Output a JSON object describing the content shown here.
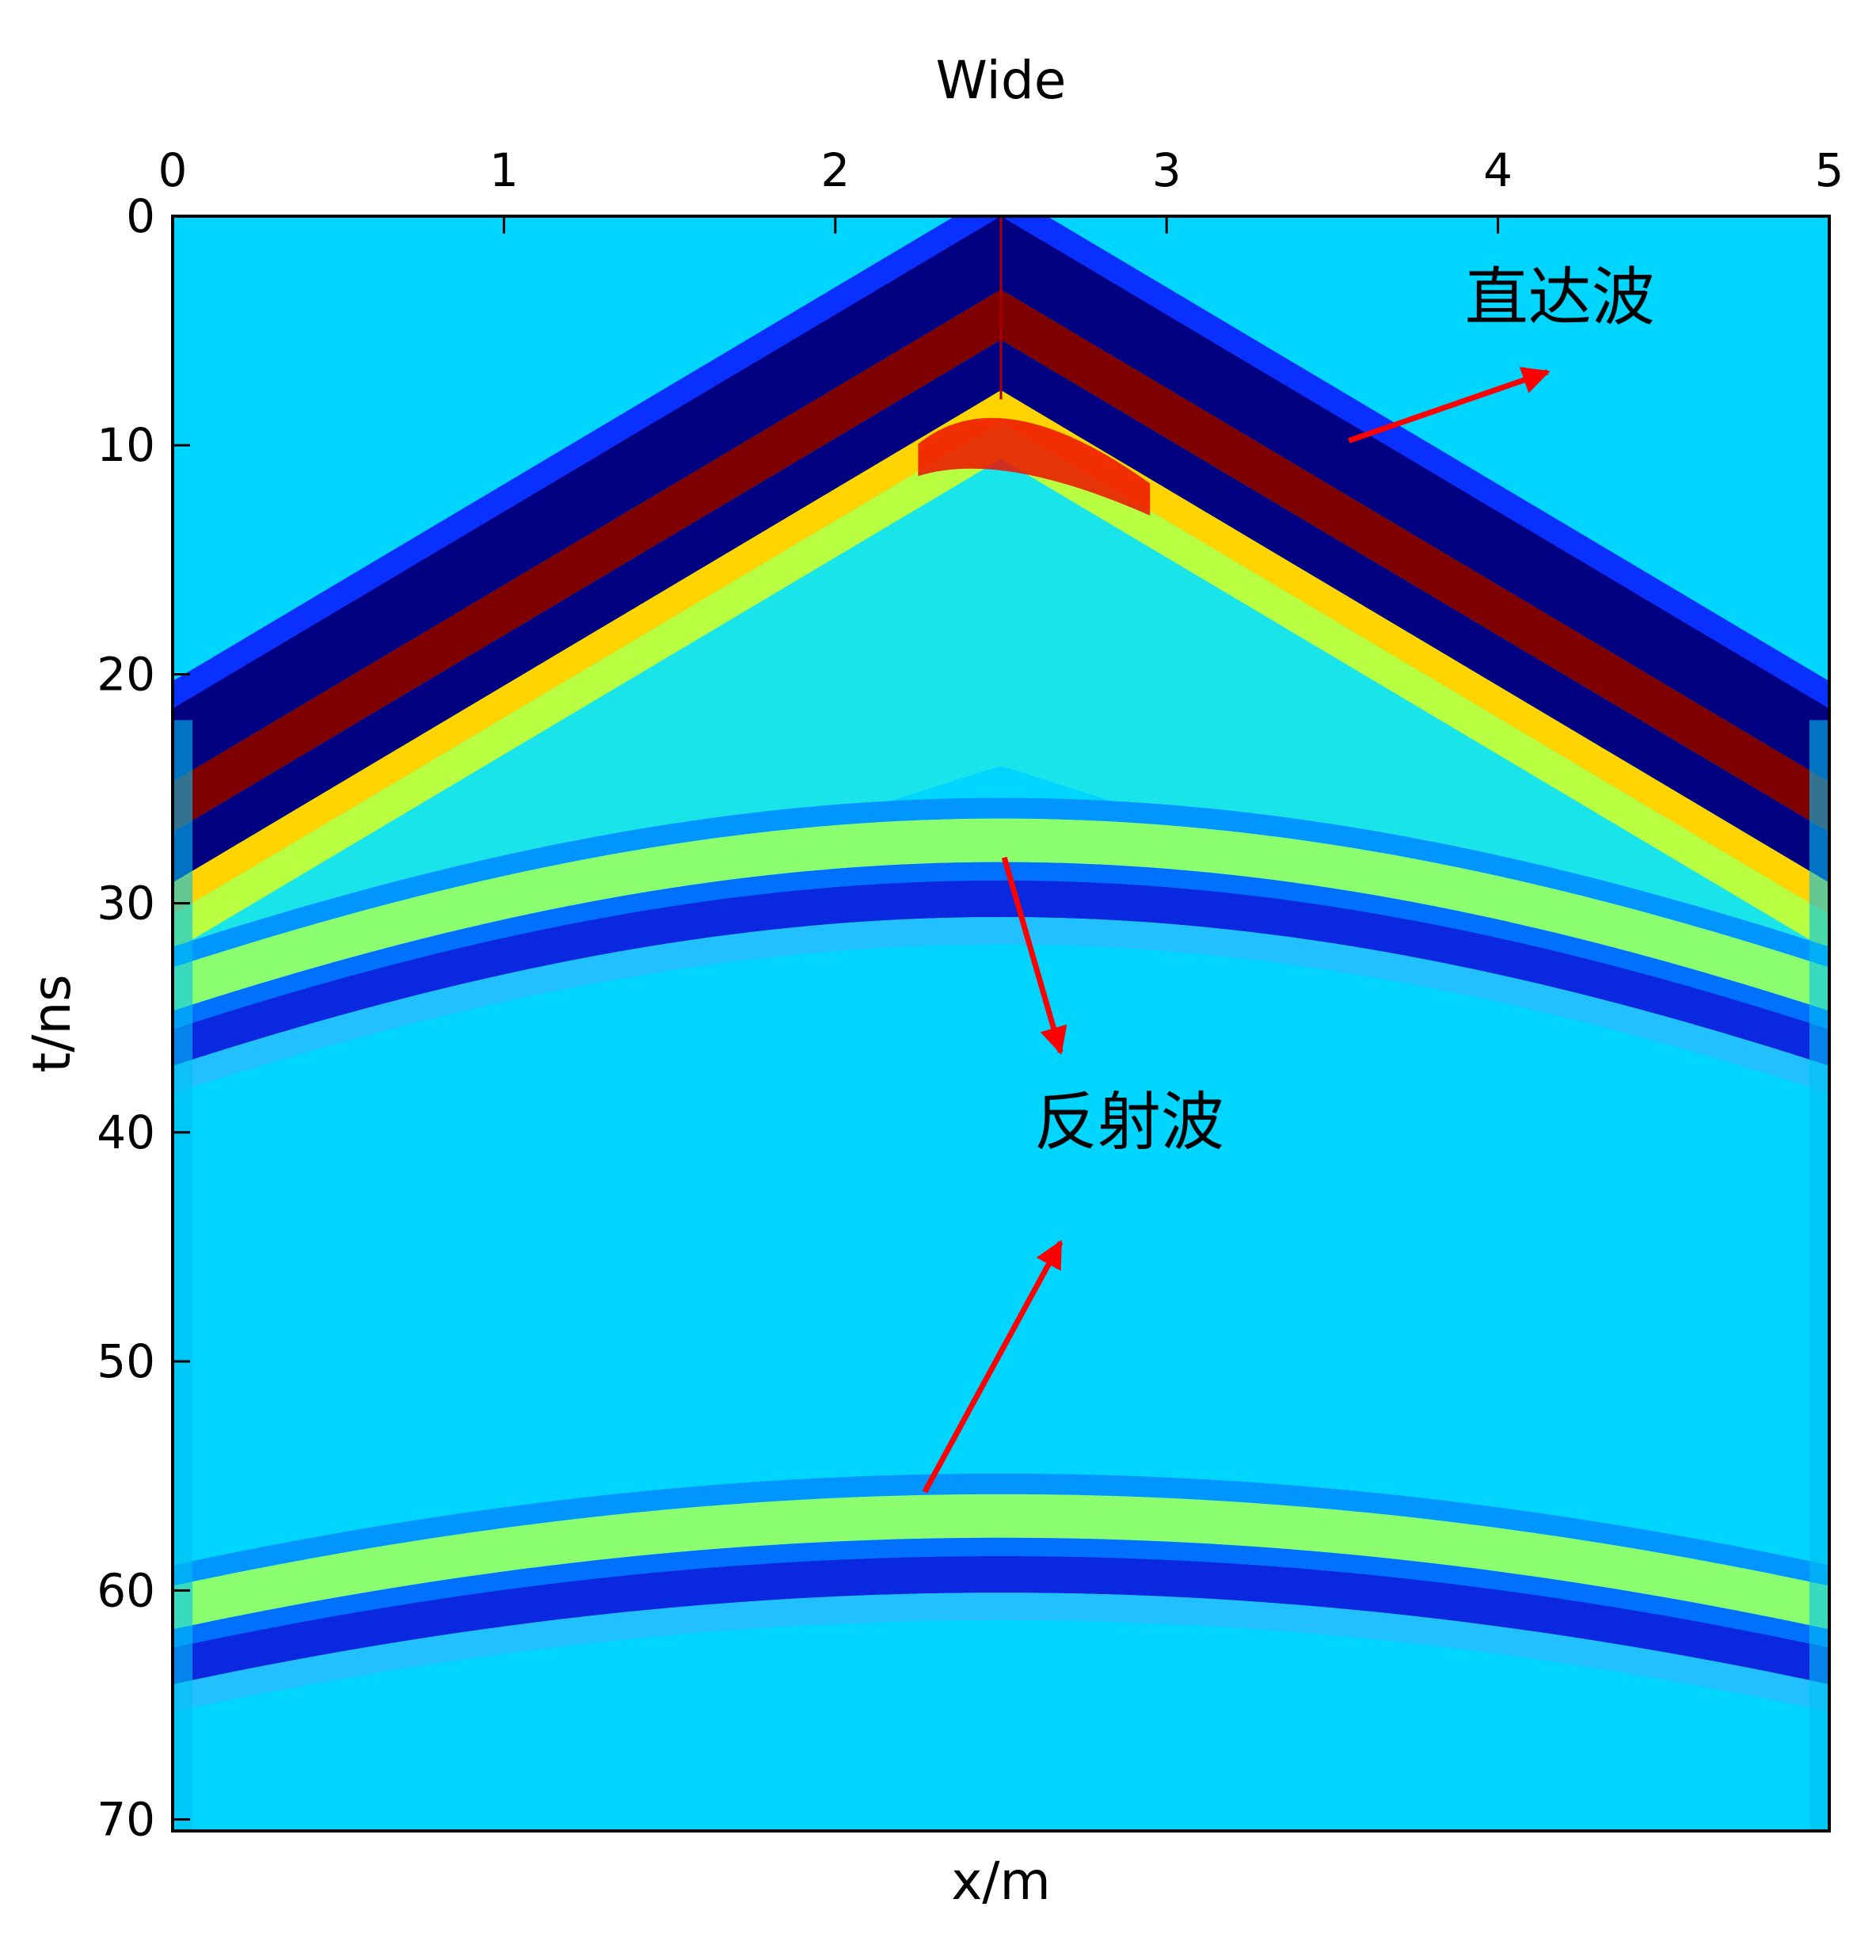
{
  "chart_data": {
    "type": "heatmap",
    "title": "Wide",
    "xlabel": "x/m",
    "ylabel": "t/ns",
    "xlim": [
      0,
      5
    ],
    "ylim": [
      0,
      70.5
    ],
    "y_inverted": true,
    "x_axis_position": "top",
    "x_ticks": [
      "0",
      "1",
      "2",
      "3",
      "4",
      "5"
    ],
    "y_ticks": [
      "0",
      "10",
      "20",
      "30",
      "40",
      "50",
      "60",
      "70"
    ],
    "colormap": "jet",
    "source_x": 2.5,
    "direct_wave": {
      "apex_t": 0,
      "edge_t": 21.5
    },
    "reflections": [
      {
        "apex_t": 27.0,
        "edge_t": 33.5
      },
      {
        "apex_t": 56.5,
        "edge_t": 60.5
      }
    ],
    "annotations": [
      {
        "text": "直达波",
        "x": 4.2,
        "t": 4.5,
        "arrow_from": [
          3.55,
          9.8
        ],
        "arrow_to": [
          4.15,
          6.8
        ]
      },
      {
        "text": "反射波",
        "x": 2.6,
        "t": 40.5,
        "arrow_from": [
          2.51,
          28.0
        ],
        "arrow_to": [
          2.68,
          36.5
        ]
      }
    ],
    "extra_arrows": [
      {
        "from": [
          2.27,
          55.7
        ],
        "to": [
          2.68,
          44.8
        ]
      }
    ],
    "arrow_color": "#ff0000"
  }
}
